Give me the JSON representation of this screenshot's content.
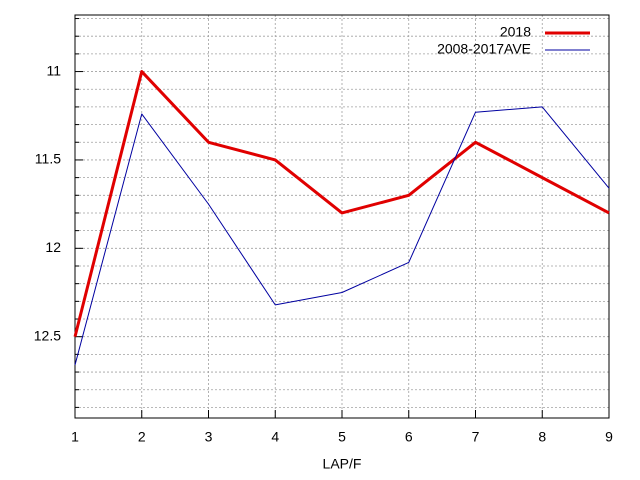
{
  "chart_data": {
    "type": "line",
    "x_label": "LAP/F",
    "x": [
      1,
      2,
      3,
      4,
      5,
      6,
      7,
      8,
      9
    ],
    "series": [
      {
        "name": "2018",
        "color": "#e00000",
        "width": 3,
        "values": [
          12.5,
          11,
          11.4,
          11.5,
          11.8,
          11.7,
          11.4,
          11.6,
          11.8
        ]
      },
      {
        "name": "2008-2017AVE",
        "color": "#0000a0",
        "width": 1,
        "values": [
          12.66,
          11.24,
          11.75,
          12.32,
          12.25,
          12.08,
          11.23,
          11.2,
          11.66
        ]
      }
    ],
    "xlim": [
      1,
      9
    ],
    "xticks": [
      1,
      2,
      3,
      4,
      5,
      6,
      7,
      8,
      9
    ],
    "ylim": [
      10.68,
      12.96
    ],
    "y_inverted": true,
    "yticks": [
      11,
      11.5,
      12,
      12.5
    ],
    "minor_yticks": [
      10.7,
      10.8,
      10.9,
      11.1,
      11.2,
      11.3,
      11.4,
      11.6,
      11.7,
      11.8,
      11.9,
      12.1,
      12.2,
      12.3,
      12.4,
      12.6,
      12.7,
      12.8,
      12.9
    ],
    "grid": true,
    "legend": "top-right"
  }
}
